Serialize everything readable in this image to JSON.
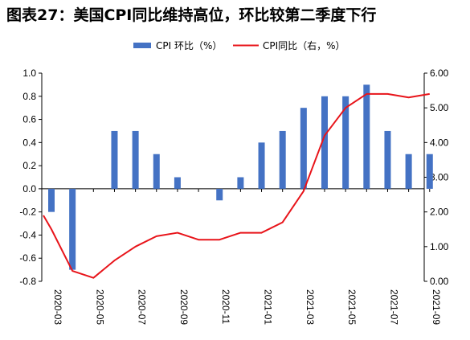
{
  "chart_data": {
    "type": "bar+line",
    "title": "图表27：美国CPI同比维持高位，环比较第二季度下行",
    "x": [
      "2020-03",
      "2020-04",
      "2020-05",
      "2020-06",
      "2020-07",
      "2020-08",
      "2020-09",
      "2020-10",
      "2020-11",
      "2020-12",
      "2021-01",
      "2021-02",
      "2021-03",
      "2021-04",
      "2021-05",
      "2021-06",
      "2021-07",
      "2021-08",
      "2021-09"
    ],
    "x_tick_labels": [
      "2020-03",
      "2020-05",
      "2020-07",
      "2020-09",
      "2020-11",
      "2021-01",
      "2021-03",
      "2021-05",
      "2021-07",
      "2021-09"
    ],
    "series": [
      {
        "name": "CPI 环比（%）",
        "type": "bar",
        "axis": "left",
        "color": "#4472C4",
        "values": [
          -0.2,
          -0.7,
          0.0,
          0.5,
          0.5,
          0.3,
          0.1,
          0.0,
          -0.1,
          0.1,
          0.4,
          0.5,
          0.7,
          0.8,
          0.8,
          0.9,
          0.5,
          0.3,
          0.3
        ]
      },
      {
        "name": "CPI同比（右，%）",
        "type": "line",
        "axis": "right",
        "color": "#E8141A",
        "values": [
          1.5,
          0.3,
          0.1,
          0.6,
          1.0,
          1.3,
          1.4,
          1.2,
          1.2,
          1.4,
          1.4,
          1.7,
          2.6,
          4.2,
          5.0,
          5.4,
          5.4,
          5.3,
          5.4
        ]
      }
    ],
    "y_left": {
      "min": -0.8,
      "max": 1.0,
      "ticks": [
        "-0.8",
        "-0.6",
        "-0.4",
        "-0.2",
        "0.0",
        "0.2",
        "0.4",
        "0.6",
        "0.8",
        "1.0"
      ]
    },
    "y_right": {
      "min": 0,
      "max": 6,
      "ticks": [
        "0.00",
        "1.00",
        "2.00",
        "3.00",
        "4.00",
        "5.00",
        "6.00"
      ]
    },
    "grid": false,
    "legend": "top-center"
  }
}
